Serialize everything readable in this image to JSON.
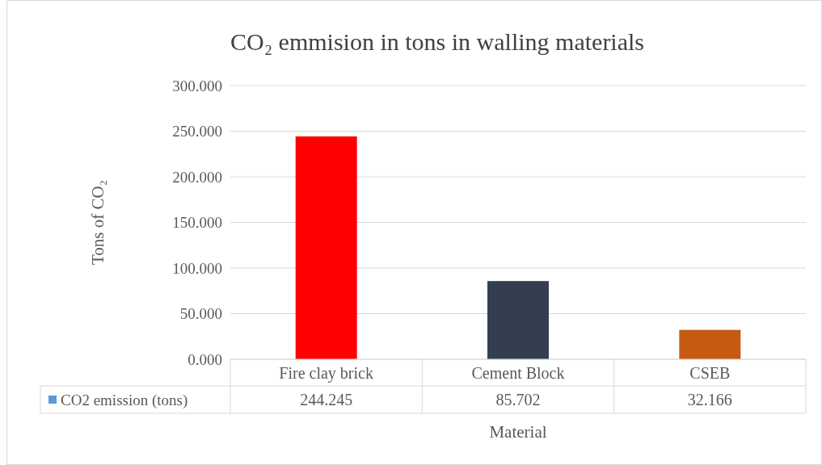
{
  "chart_data": {
    "type": "bar",
    "title": "CO₂ emmision in tons in walling materials",
    "xlabel": "Material",
    "ylabel": "Tons of CO₂",
    "categories": [
      "Fire clay brick",
      "Cement Block",
      "CSEB"
    ],
    "series": [
      {
        "name": "CO2 emission (tons)",
        "color": "#5b9bd5",
        "colors": [
          "#ff0000",
          "#333f50",
          "#c55a11"
        ],
        "values": [
          244.245,
          85.702,
          32.166
        ]
      }
    ],
    "ylim": [
      0,
      300
    ],
    "yticks": [
      {
        "value": 0,
        "label": "0.000"
      },
      {
        "value": 50,
        "label": "50.000"
      },
      {
        "value": 100,
        "label": "100.000"
      },
      {
        "value": 150,
        "label": "150.000"
      },
      {
        "value": 200,
        "label": "200.000"
      },
      {
        "value": 250,
        "label": "250.000"
      },
      {
        "value": 300,
        "label": "300.000"
      }
    ],
    "grid": "y",
    "legend": "bottom",
    "data_labels": true
  }
}
